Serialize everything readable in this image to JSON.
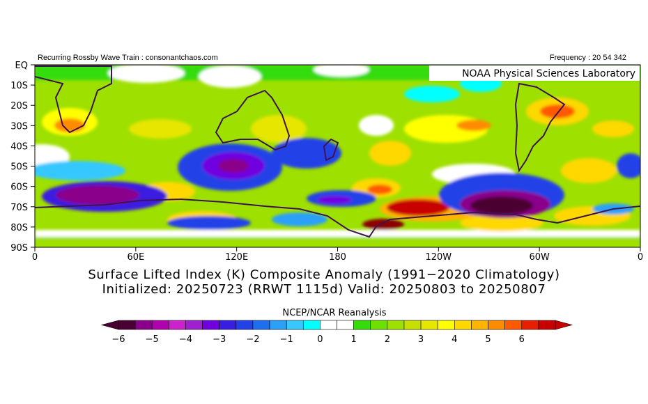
{
  "header": {
    "left": "Recurring Rossby Wave Train : consonantchaos.com",
    "right": "Frequency : 20 54 342",
    "lab": "NOAA Physical Sciences Laboratory"
  },
  "axes": {
    "y_labels": [
      "EQ",
      "10S",
      "20S",
      "30S",
      "40S",
      "50S",
      "60S",
      "70S",
      "80S",
      "90S"
    ],
    "x_labels": [
      "0",
      "60E",
      "120E",
      "180",
      "120W",
      "60W",
      "0"
    ]
  },
  "titles": {
    "line1": "Surface Lifted Index (K) Composite Anomaly (1991−2020 Climatology)",
    "line2": "Initialized: 20250723 (RRWT 1115d) Valid: 20250803 to 20250807"
  },
  "colorbar": {
    "label": "NCEP/NCAR Reanalysis",
    "ticks": [
      "−6",
      "−5",
      "−4",
      "−3",
      "−2",
      "−1",
      "0",
      "1",
      "2",
      "3",
      "4",
      "5",
      "6"
    ],
    "colors": [
      "#4b0033",
      "#8a008a",
      "#b000b0",
      "#cc22cc",
      "#a020d0",
      "#7000e0",
      "#3a1ee0",
      "#2242e8",
      "#1e6ef0",
      "#2aa0f8",
      "#36c8ff",
      "#00ffff",
      "#ffffff",
      "#ffffff",
      "#36dc0a",
      "#6ee000",
      "#9ee000",
      "#c8e000",
      "#e6e600",
      "#ffff00",
      "#ffd800",
      "#ffb400",
      "#ff8c00",
      "#ff5a00",
      "#e81e00",
      "#c80000"
    ]
  },
  "map_colors": {
    "deep_purple": "#4b0033",
    "purple": "#8a008a",
    "violet": "#7000e0",
    "blue": "#2242e8",
    "light_blue": "#2aa0f8",
    "cyan": "#00ffff",
    "green": "#36dc0a",
    "light_green": "#9ee000",
    "yellow": "#ffff00",
    "orange": "#ff8c00",
    "red": "#e81e00",
    "dark_red": "#8c0000",
    "coast": "#3c1450"
  }
}
